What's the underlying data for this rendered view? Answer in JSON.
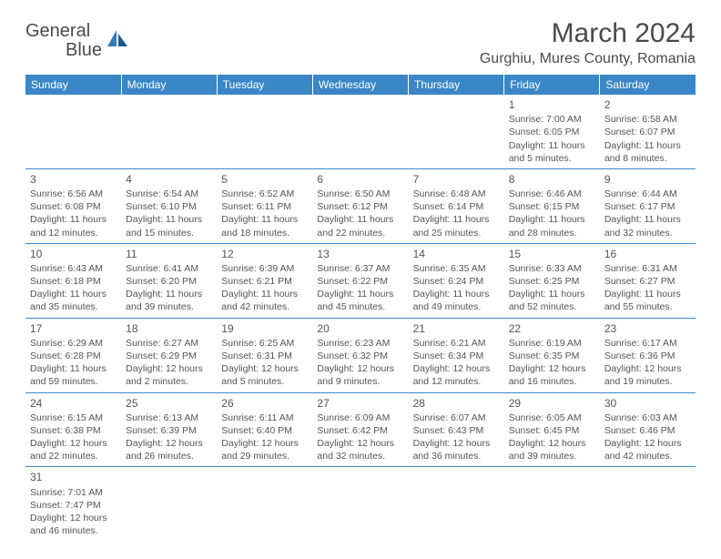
{
  "logo": {
    "text1": "General",
    "text2": "Blue"
  },
  "title": "March 2024",
  "location": "Gurghiu, Mures County, Romania",
  "colors": {
    "header_bg": "#3a87c7",
    "text": "#4a4a4a",
    "accent": "#2f7bbf"
  },
  "day_headers": [
    "Sunday",
    "Monday",
    "Tuesday",
    "Wednesday",
    "Thursday",
    "Friday",
    "Saturday"
  ],
  "weeks": [
    [
      null,
      null,
      null,
      null,
      null,
      {
        "n": "1",
        "sr": "Sunrise: 7:00 AM",
        "ss": "Sunset: 6:05 PM",
        "d1": "Daylight: 11 hours",
        "d2": "and 5 minutes."
      },
      {
        "n": "2",
        "sr": "Sunrise: 6:58 AM",
        "ss": "Sunset: 6:07 PM",
        "d1": "Daylight: 11 hours",
        "d2": "and 8 minutes."
      }
    ],
    [
      {
        "n": "3",
        "sr": "Sunrise: 6:56 AM",
        "ss": "Sunset: 6:08 PM",
        "d1": "Daylight: 11 hours",
        "d2": "and 12 minutes."
      },
      {
        "n": "4",
        "sr": "Sunrise: 6:54 AM",
        "ss": "Sunset: 6:10 PM",
        "d1": "Daylight: 11 hours",
        "d2": "and 15 minutes."
      },
      {
        "n": "5",
        "sr": "Sunrise: 6:52 AM",
        "ss": "Sunset: 6:11 PM",
        "d1": "Daylight: 11 hours",
        "d2": "and 18 minutes."
      },
      {
        "n": "6",
        "sr": "Sunrise: 6:50 AM",
        "ss": "Sunset: 6:12 PM",
        "d1": "Daylight: 11 hours",
        "d2": "and 22 minutes."
      },
      {
        "n": "7",
        "sr": "Sunrise: 6:48 AM",
        "ss": "Sunset: 6:14 PM",
        "d1": "Daylight: 11 hours",
        "d2": "and 25 minutes."
      },
      {
        "n": "8",
        "sr": "Sunrise: 6:46 AM",
        "ss": "Sunset: 6:15 PM",
        "d1": "Daylight: 11 hours",
        "d2": "and 28 minutes."
      },
      {
        "n": "9",
        "sr": "Sunrise: 6:44 AM",
        "ss": "Sunset: 6:17 PM",
        "d1": "Daylight: 11 hours",
        "d2": "and 32 minutes."
      }
    ],
    [
      {
        "n": "10",
        "sr": "Sunrise: 6:43 AM",
        "ss": "Sunset: 6:18 PM",
        "d1": "Daylight: 11 hours",
        "d2": "and 35 minutes."
      },
      {
        "n": "11",
        "sr": "Sunrise: 6:41 AM",
        "ss": "Sunset: 6:20 PM",
        "d1": "Daylight: 11 hours",
        "d2": "and 39 minutes."
      },
      {
        "n": "12",
        "sr": "Sunrise: 6:39 AM",
        "ss": "Sunset: 6:21 PM",
        "d1": "Daylight: 11 hours",
        "d2": "and 42 minutes."
      },
      {
        "n": "13",
        "sr": "Sunrise: 6:37 AM",
        "ss": "Sunset: 6:22 PM",
        "d1": "Daylight: 11 hours",
        "d2": "and 45 minutes."
      },
      {
        "n": "14",
        "sr": "Sunrise: 6:35 AM",
        "ss": "Sunset: 6:24 PM",
        "d1": "Daylight: 11 hours",
        "d2": "and 49 minutes."
      },
      {
        "n": "15",
        "sr": "Sunrise: 6:33 AM",
        "ss": "Sunset: 6:25 PM",
        "d1": "Daylight: 11 hours",
        "d2": "and 52 minutes."
      },
      {
        "n": "16",
        "sr": "Sunrise: 6:31 AM",
        "ss": "Sunset: 6:27 PM",
        "d1": "Daylight: 11 hours",
        "d2": "and 55 minutes."
      }
    ],
    [
      {
        "n": "17",
        "sr": "Sunrise: 6:29 AM",
        "ss": "Sunset: 6:28 PM",
        "d1": "Daylight: 11 hours",
        "d2": "and 59 minutes."
      },
      {
        "n": "18",
        "sr": "Sunrise: 6:27 AM",
        "ss": "Sunset: 6:29 PM",
        "d1": "Daylight: 12 hours",
        "d2": "and 2 minutes."
      },
      {
        "n": "19",
        "sr": "Sunrise: 6:25 AM",
        "ss": "Sunset: 6:31 PM",
        "d1": "Daylight: 12 hours",
        "d2": "and 5 minutes."
      },
      {
        "n": "20",
        "sr": "Sunrise: 6:23 AM",
        "ss": "Sunset: 6:32 PM",
        "d1": "Daylight: 12 hours",
        "d2": "and 9 minutes."
      },
      {
        "n": "21",
        "sr": "Sunrise: 6:21 AM",
        "ss": "Sunset: 6:34 PM",
        "d1": "Daylight: 12 hours",
        "d2": "and 12 minutes."
      },
      {
        "n": "22",
        "sr": "Sunrise: 6:19 AM",
        "ss": "Sunset: 6:35 PM",
        "d1": "Daylight: 12 hours",
        "d2": "and 16 minutes."
      },
      {
        "n": "23",
        "sr": "Sunrise: 6:17 AM",
        "ss": "Sunset: 6:36 PM",
        "d1": "Daylight: 12 hours",
        "d2": "and 19 minutes."
      }
    ],
    [
      {
        "n": "24",
        "sr": "Sunrise: 6:15 AM",
        "ss": "Sunset: 6:38 PM",
        "d1": "Daylight: 12 hours",
        "d2": "and 22 minutes."
      },
      {
        "n": "25",
        "sr": "Sunrise: 6:13 AM",
        "ss": "Sunset: 6:39 PM",
        "d1": "Daylight: 12 hours",
        "d2": "and 26 minutes."
      },
      {
        "n": "26",
        "sr": "Sunrise: 6:11 AM",
        "ss": "Sunset: 6:40 PM",
        "d1": "Daylight: 12 hours",
        "d2": "and 29 minutes."
      },
      {
        "n": "27",
        "sr": "Sunrise: 6:09 AM",
        "ss": "Sunset: 6:42 PM",
        "d1": "Daylight: 12 hours",
        "d2": "and 32 minutes."
      },
      {
        "n": "28",
        "sr": "Sunrise: 6:07 AM",
        "ss": "Sunset: 6:43 PM",
        "d1": "Daylight: 12 hours",
        "d2": "and 36 minutes."
      },
      {
        "n": "29",
        "sr": "Sunrise: 6:05 AM",
        "ss": "Sunset: 6:45 PM",
        "d1": "Daylight: 12 hours",
        "d2": "and 39 minutes."
      },
      {
        "n": "30",
        "sr": "Sunrise: 6:03 AM",
        "ss": "Sunset: 6:46 PM",
        "d1": "Daylight: 12 hours",
        "d2": "and 42 minutes."
      }
    ],
    [
      {
        "n": "31",
        "sr": "Sunrise: 7:01 AM",
        "ss": "Sunset: 7:47 PM",
        "d1": "Daylight: 12 hours",
        "d2": "and 46 minutes."
      },
      null,
      null,
      null,
      null,
      null,
      null
    ]
  ]
}
